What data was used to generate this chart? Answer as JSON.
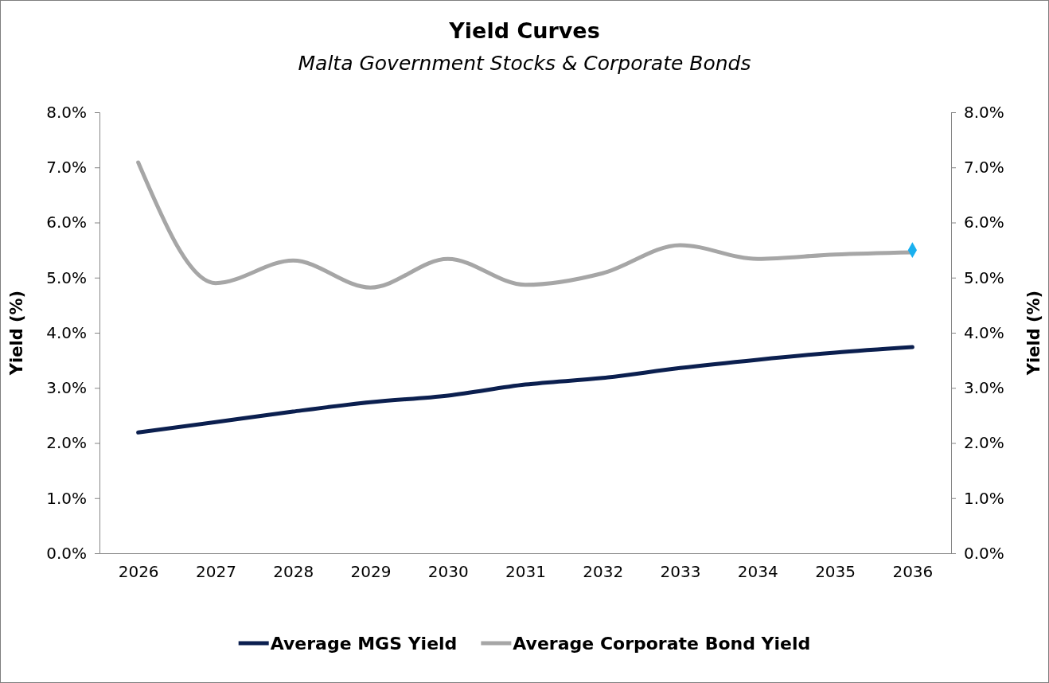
{
  "chart_data": {
    "type": "line",
    "title": "Yield Curves",
    "subtitle": "Malta Government Stocks & Corporate Bonds",
    "ylabel": "Yield (%)",
    "y2label": "Yield (%)",
    "categories": [
      "2026",
      "2027",
      "2028",
      "2029",
      "2030",
      "2031",
      "2032",
      "2033",
      "2034",
      "2035",
      "2036"
    ],
    "series": [
      {
        "name": "Average MGS Yield",
        "color": "#0b1f4f",
        "values": [
          2.19,
          2.38,
          2.57,
          2.74,
          2.86,
          3.06,
          3.18,
          3.36,
          3.51,
          3.64,
          3.74
        ]
      },
      {
        "name": "Average Corporate Bond Yield",
        "color": "#a6a6a6",
        "values": [
          7.09,
          4.9,
          5.31,
          4.82,
          5.34,
          4.87,
          5.08,
          5.59,
          5.34,
          5.42,
          5.46
        ]
      },
      {
        "type": "scatter",
        "color": "#1ab0ef",
        "marker": "diamond",
        "values": [
          null,
          null,
          null,
          null,
          null,
          null,
          null,
          null,
          null,
          null,
          5.5
        ]
      }
    ],
    "ylim": [
      0,
      8
    ],
    "yticks": [
      {
        "value": 0,
        "label": "0.0%"
      },
      {
        "value": 1,
        "label": "1.0%"
      },
      {
        "value": 2,
        "label": "2.0%"
      },
      {
        "value": 3,
        "label": "3.0%"
      },
      {
        "value": 4,
        "label": "4.0%"
      },
      {
        "value": 5,
        "label": "5.0%"
      },
      {
        "value": 6,
        "label": "6.0%"
      },
      {
        "value": 7,
        "label": "7.0%"
      },
      {
        "value": 8,
        "label": "8.0%"
      }
    ],
    "y2lim": [
      0,
      8
    ],
    "y2ticks": [
      {
        "value": 0,
        "label": "0.0%"
      },
      {
        "value": 1,
        "label": "1.0%"
      },
      {
        "value": 2,
        "label": "2.0%"
      },
      {
        "value": 3,
        "label": "3.0%"
      },
      {
        "value": 4,
        "label": "4.0%"
      },
      {
        "value": 5,
        "label": "5.0%"
      },
      {
        "value": 6,
        "label": "6.0%"
      },
      {
        "value": 7,
        "label": "7.0%"
      },
      {
        "value": 8,
        "label": "8.0%"
      }
    ],
    "grid": false,
    "legend": "bottom",
    "marker": "none",
    "line_style": "solid"
  }
}
